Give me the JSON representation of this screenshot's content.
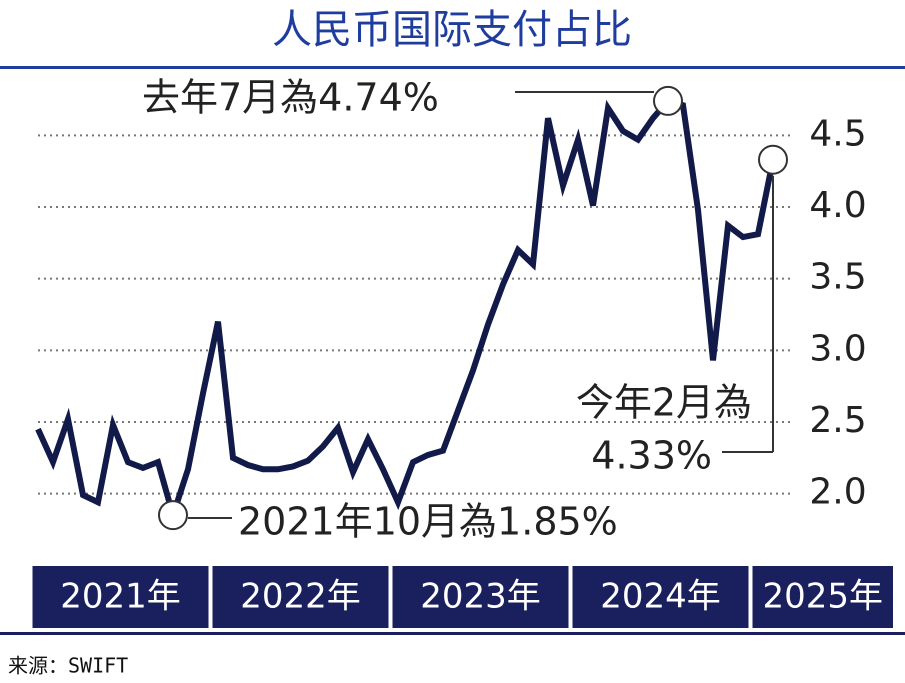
{
  "chart_data": {
    "type": "line",
    "title": "人民币国际支付占比",
    "year_labels": [
      "2021年",
      "2022年",
      "2023年",
      "2024年",
      "2025年"
    ],
    "series": [
      {
        "color": "#111a48",
        "values": [
          2.45,
          2.22,
          2.52,
          1.99,
          1.94,
          2.48,
          2.22,
          2.18,
          2.22,
          1.85,
          2.17,
          2.7,
          3.2,
          2.25,
          2.2,
          2.17,
          2.17,
          2.19,
          2.23,
          2.33,
          2.46,
          2.15,
          2.38,
          2.17,
          1.94,
          2.22,
          2.27,
          2.3,
          2.58,
          2.86,
          3.18,
          3.46,
          3.7,
          3.6,
          4.62,
          4.15,
          4.47,
          4.01,
          4.69,
          4.53,
          4.47,
          4.62,
          4.74,
          4.71,
          3.98,
          2.93,
          3.87,
          3.79,
          3.81,
          4.33
        ]
      }
    ],
    "ylim": [
      1.6,
      4.9
    ],
    "yticks": [
      {
        "value": 2,
        "label": "2.0"
      },
      2.5,
      {
        "value": 3,
        "label": "3.0"
      },
      3.5,
      {
        "value": 4,
        "label": "4.0"
      },
      4.5
    ],
    "grid": true,
    "annotations": [
      "去年7月為4.74%",
      "今年2月為",
      "4.33%",
      "2021年10月為1.85%"
    ],
    "source": "来源：SWIFT"
  }
}
